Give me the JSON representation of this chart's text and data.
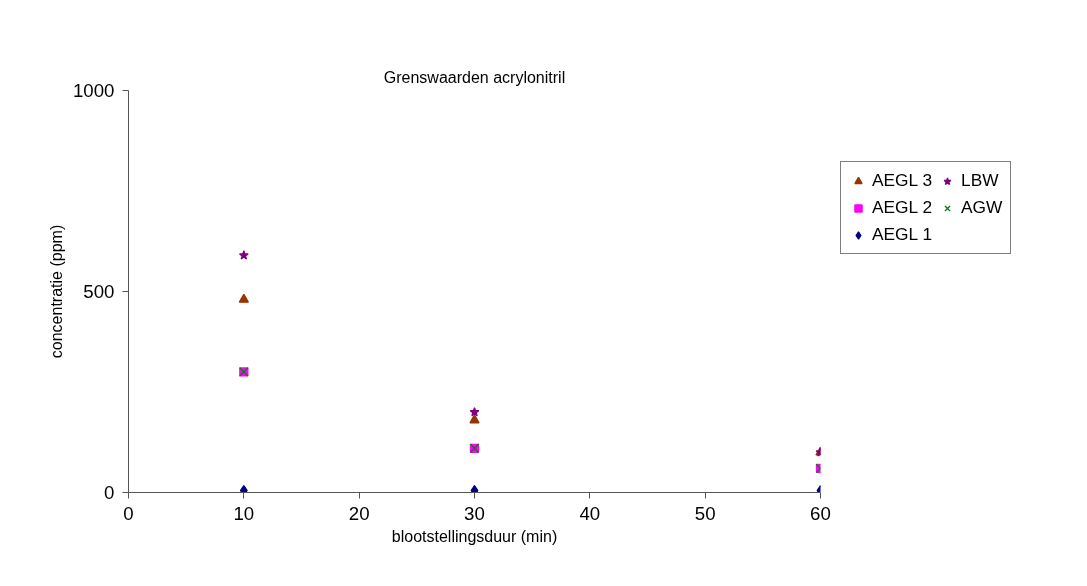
{
  "chart_data": {
    "type": "scatter",
    "title": "Grenswaarden acrylonitril",
    "xlabel": "blootstellingsduur (min)",
    "ylabel": "concentratie (ppm)",
    "x": [
      10,
      30,
      60
    ],
    "series": [
      {
        "name": "AEGL 3",
        "color": "#993300",
        "marker": "triangle",
        "values": [
          480,
          180,
          100
        ]
      },
      {
        "name": "AEGL 2",
        "color": "#ff00ff",
        "marker": "square",
        "values": [
          300,
          110,
          60
        ]
      },
      {
        "name": "AEGL 1",
        "color": "#000080",
        "marker": "diamond",
        "values": [
          5,
          5,
          5
        ]
      },
      {
        "name": "LBW",
        "color": "#800080",
        "marker": "star",
        "values": [
          590,
          200,
          100
        ]
      },
      {
        "name": "AGW",
        "color": "#008000",
        "marker": "cross",
        "values": [
          300,
          110,
          60
        ]
      }
    ],
    "xlim": [
      0,
      60
    ],
    "ylim": [
      0,
      1000
    ],
    "xticks": [
      0,
      10,
      20,
      30,
      40,
      50,
      60
    ],
    "yticks": [
      0,
      500,
      1000
    ],
    "grid": false,
    "legend": "right"
  }
}
